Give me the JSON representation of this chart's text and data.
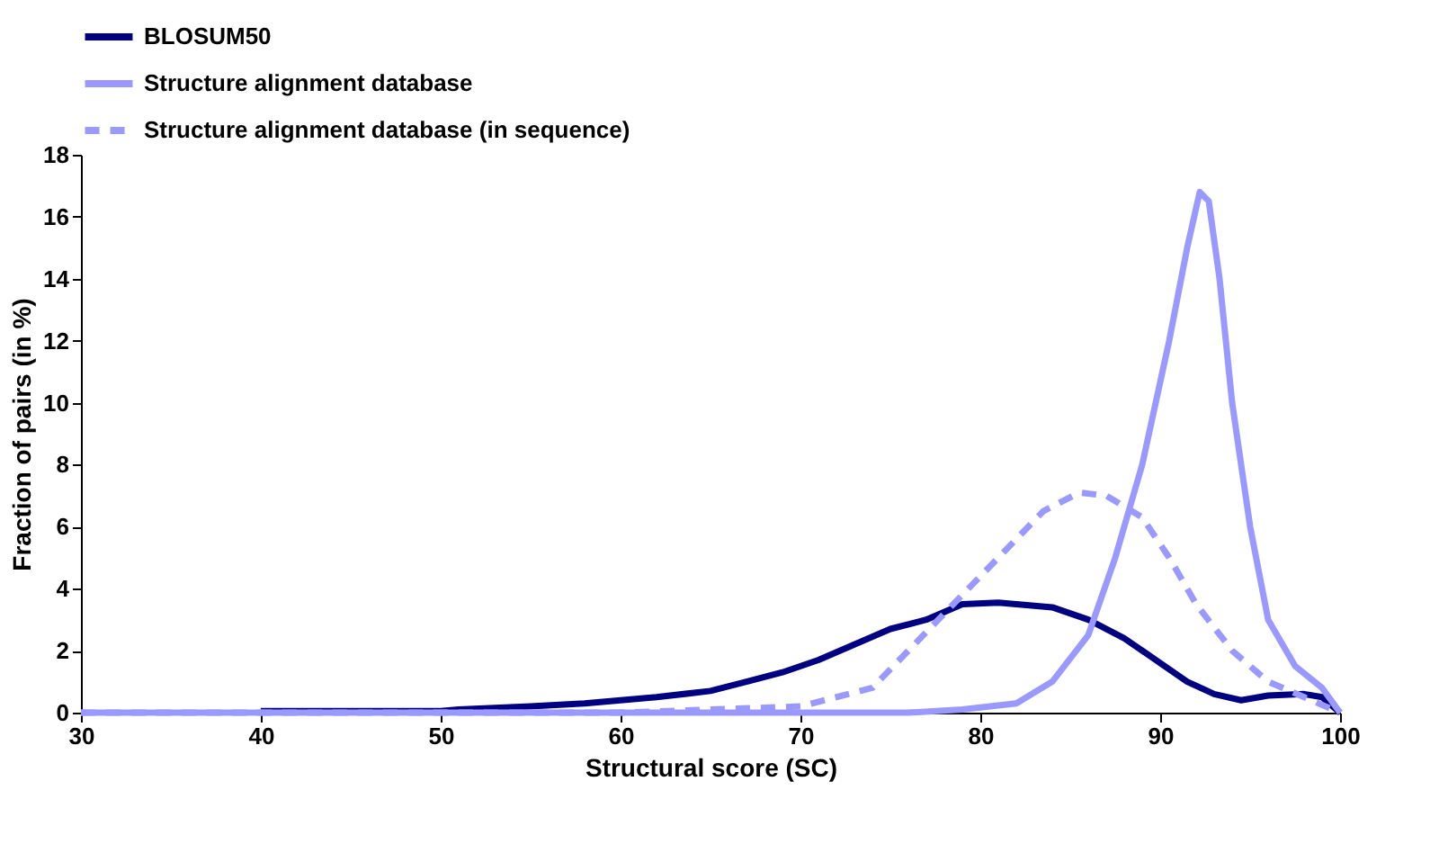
{
  "chart_data": {
    "type": "line",
    "xlabel": "Structural score (SC)",
    "ylabel": "Fraction of pairs (in %)",
    "xlim": [
      30,
      100
    ],
    "xticks": [
      30,
      40,
      50,
      60,
      70,
      80,
      90,
      100
    ],
    "ylim": [
      0,
      18
    ],
    "yticks": [
      0,
      2,
      4,
      6,
      8,
      10,
      12,
      14,
      16,
      18
    ],
    "grid": false,
    "legend": "top",
    "marker": "none",
    "series": [
      {
        "name": "BLOSUM50",
        "color": "#000080",
        "line_style": "solid",
        "x": [
          40,
          45,
          50,
          51,
          55,
          58,
          62,
          65,
          67,
          69,
          71,
          73,
          75,
          77,
          79,
          81,
          84,
          86,
          88,
          90,
          91.5,
          93,
          94.5,
          96,
          98,
          99,
          100
        ],
        "values": [
          0.05,
          0.05,
          0.05,
          0.1,
          0.2,
          0.3,
          0.5,
          0.7,
          1.0,
          1.3,
          1.7,
          2.2,
          2.7,
          3.0,
          3.5,
          3.55,
          3.4,
          3.0,
          2.4,
          1.6,
          1.0,
          0.6,
          0.4,
          0.55,
          0.6,
          0.5,
          0
        ]
      },
      {
        "name": "Structure alignment database",
        "color": "#9999ff",
        "line_style": "solid",
        "x": [
          30,
          50,
          70,
          76,
          79,
          82,
          84,
          86,
          87.5,
          89,
          90.5,
          91.5,
          92.2,
          92.7,
          93.3,
          94,
          95,
          96,
          97.5,
          99,
          100
        ],
        "values": [
          0,
          0,
          0,
          0,
          0.1,
          0.3,
          1.0,
          2.5,
          5,
          8,
          12,
          15,
          16.8,
          16.5,
          14,
          10,
          6,
          3,
          1.5,
          0.8,
          0
        ]
      },
      {
        "name": "Structure alignment database (in sequence)",
        "color": "#9999ff",
        "line_style": "dashed",
        "x": [
          30,
          60,
          65,
          70,
          74,
          76,
          78.5,
          81,
          83.5,
          85.5,
          87,
          89,
          90.5,
          92,
          94,
          96,
          98,
          100
        ],
        "values": [
          0,
          0,
          0.1,
          0.2,
          0.8,
          2,
          3.5,
          5,
          6.5,
          7.1,
          7,
          6.3,
          5,
          3.5,
          2,
          1,
          0.5,
          0
        ]
      }
    ]
  }
}
